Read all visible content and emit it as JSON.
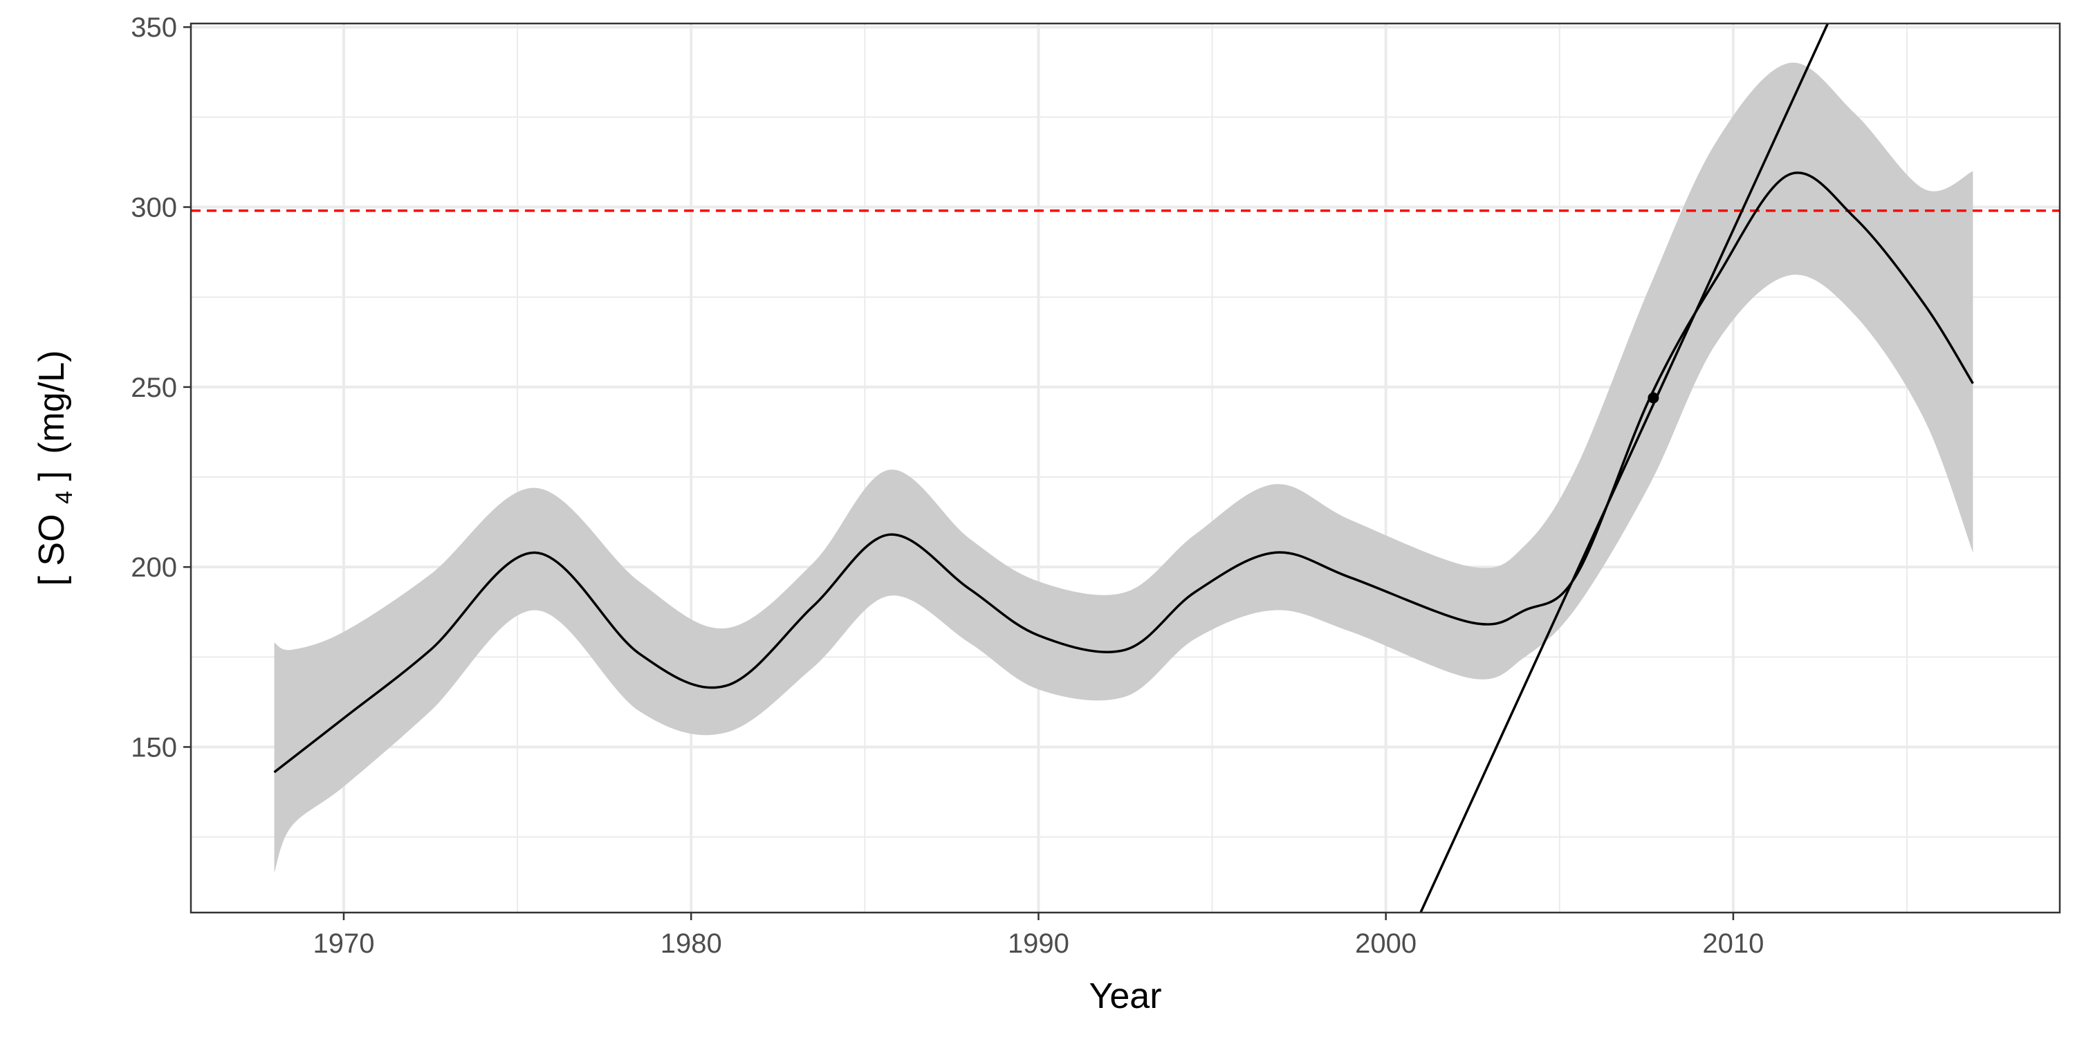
{
  "chart_data": {
    "type": "line",
    "title": "",
    "xlabel": "Year",
    "ylabel": {
      "bracket_open": "[",
      "species": "SO",
      "subscript": "4",
      "bracket_close": "]",
      "unit": "(mg/L)"
    },
    "xlim": [
      1965.6,
      2019.4
    ],
    "ylim": [
      104,
      351
    ],
    "x_ticks": [
      1970,
      1980,
      1990,
      2000,
      2010
    ],
    "x_tick_labels": [
      "1970",
      "1980",
      "1990",
      "2000",
      "2010"
    ],
    "y_ticks": [
      150,
      200,
      250,
      300,
      350
    ],
    "y_tick_labels": [
      "150",
      "200",
      "250",
      "300",
      "350"
    ],
    "grid": true,
    "legend": "none",
    "series": [
      {
        "kind": "smooth_fit",
        "x": [
          1968,
          1970,
          1972.5,
          1975.5,
          1978.5,
          1981,
          1983.5,
          1985.7,
          1988,
          1990,
          1992.5,
          1994.5,
          1996.8,
          1999,
          2002.5,
          2004,
          2005.5,
          2007.6,
          2009.5,
          2011.6,
          2013.5,
          2015.5,
          2016.9
        ],
        "y": [
          143,
          158,
          177,
          204,
          176,
          167,
          189,
          209,
          194,
          181,
          177,
          193,
          204,
          197,
          184.5,
          188,
          198,
          247,
          280,
          309,
          297,
          273,
          251
        ],
        "color": "#000000"
      },
      {
        "kind": "confidence_band",
        "x": [
          1968,
          1968.5,
          1970,
          1972.5,
          1975.5,
          1978.5,
          1981,
          1983.5,
          1985.7,
          1988,
          1990,
          1992.5,
          1994.5,
          1996.8,
          1999,
          2002.5,
          2004,
          2005.5,
          2007.6,
          2009.5,
          2011.6,
          2013.5,
          2015.5,
          2016.9
        ],
        "upper": [
          179,
          177,
          182,
          198,
          222,
          196,
          183,
          201,
          227,
          208,
          196,
          193,
          209,
          223,
          213,
          200,
          206,
          228,
          278,
          318,
          340,
          326,
          305,
          310
        ],
        "lower": [
          115,
          128,
          139,
          160,
          188,
          160,
          154,
          172,
          192,
          179,
          166,
          164,
          180,
          188,
          182,
          169,
          175,
          189,
          223,
          262,
          281,
          270,
          241,
          204
        ],
        "color": "#cccccc"
      },
      {
        "kind": "tangent_line",
        "x": [
          2001,
          2012.72
        ],
        "y": [
          104,
          351
        ],
        "color": "#000000"
      },
      {
        "kind": "point",
        "x": [
          2007.7
        ],
        "y": [
          247
        ],
        "color": "#000000"
      }
    ],
    "reference_line": {
      "orientation": "horizontal",
      "y": 299,
      "style": "dashed",
      "color": "#ff0000"
    }
  }
}
